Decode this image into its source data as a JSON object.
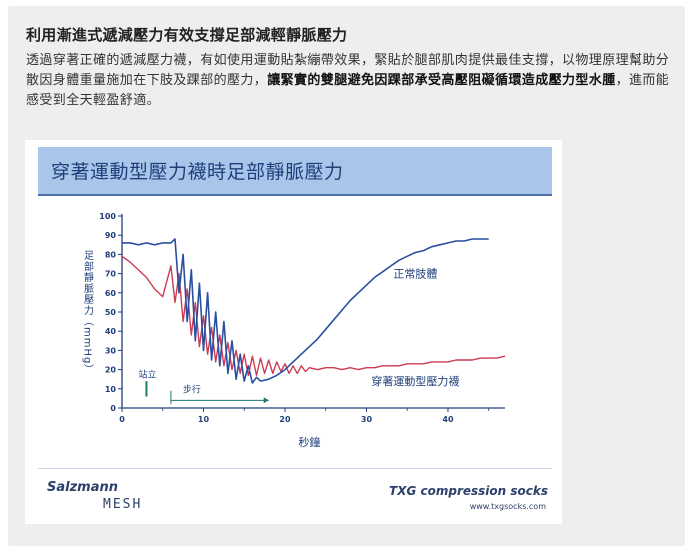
{
  "article": {
    "heading": "利用漸進式遞減壓力有效支撐足部減輕靜脈壓力",
    "para_1": "透過穿著正確的遞減壓力襪，有如使用運動貼紮繃帶效果，緊貼於腿部肌肉提供最佳支撐，以物理原理幫助分散因身體重量施加在下肢及踝部的壓力，",
    "para_bold": "讓緊實的雙腿避免因踝部承受高壓阻礙循環造成壓力型水腫",
    "para_2": "，進而能感受到全天輕盈舒適。"
  },
  "figure": {
    "title": "穿著運動型壓力襪時足部靜脈壓力",
    "logo_left_main": "Salzmann",
    "logo_left_sub": "MESH",
    "logo_right": "TXG compression socks",
    "logo_url": "www.txgsocks.com",
    "colors": {
      "normal": "#2a4fa0",
      "socks": "#cc3b52",
      "title_bar": "#a9c6ea"
    }
  },
  "chart_data": {
    "type": "line",
    "xlabel": "秒鐘",
    "ylabel": "足部靜脈壓力（mmHg）",
    "xlim": [
      0,
      47
    ],
    "ylim": [
      0,
      100
    ],
    "x_ticks": [
      "0",
      "10",
      "20",
      "30",
      "40"
    ],
    "y_ticks": [
      "0",
      "10",
      "20",
      "30",
      "40",
      "50",
      "60",
      "70",
      "80",
      "90",
      "100"
    ],
    "annotations": {
      "stand": "站立",
      "walk": "步行",
      "stand_x": 3,
      "walk_start": 6,
      "walk_end": 18
    },
    "series": [
      {
        "name": "正常肢體",
        "x": [
          0,
          1,
          2,
          3,
          4,
          5,
          6,
          6.5,
          7,
          7.5,
          8,
          8.5,
          9,
          9.5,
          10,
          10.5,
          11,
          11.5,
          12,
          12.5,
          13,
          13.5,
          14,
          14.5,
          15,
          15.5,
          16,
          16.5,
          17,
          18,
          19,
          20,
          21,
          22,
          23,
          24,
          25,
          26,
          27,
          28,
          29,
          30,
          31,
          32,
          33,
          34,
          35,
          36,
          37,
          38,
          39,
          40,
          41,
          42,
          43,
          44,
          45
        ],
        "values": [
          86,
          86,
          85,
          86,
          85,
          86,
          86,
          88,
          60,
          80,
          45,
          72,
          35,
          65,
          30,
          60,
          25,
          50,
          22,
          45,
          18,
          35,
          15,
          28,
          14,
          22,
          13,
          16,
          14,
          15,
          17,
          20,
          24,
          28,
          32,
          36,
          41,
          46,
          51,
          56,
          60,
          64,
          68,
          71,
          74,
          77,
          79,
          81,
          82,
          84,
          85,
          86,
          87,
          87,
          88,
          88,
          88
        ]
      },
      {
        "name": "穿著運動型壓力襪",
        "x": [
          0,
          1,
          2,
          3,
          4,
          5,
          6,
          6.5,
          7,
          7.5,
          8,
          8.5,
          9,
          9.5,
          10,
          10.5,
          11,
          11.5,
          12,
          12.5,
          13,
          13.5,
          14,
          14.5,
          15,
          15.5,
          16,
          16.5,
          17,
          17.5,
          18,
          18.5,
          19,
          19.5,
          20,
          20.5,
          21,
          21.5,
          22,
          22.5,
          23,
          24,
          25,
          26,
          27,
          28,
          29,
          30,
          31,
          32,
          33,
          34,
          35,
          36,
          37,
          38,
          39,
          40,
          41,
          42,
          43,
          44,
          45,
          46,
          47
        ],
        "values": [
          79,
          76,
          72,
          68,
          62,
          58,
          74,
          55,
          70,
          45,
          62,
          38,
          55,
          32,
          48,
          28,
          42,
          24,
          38,
          22,
          34,
          20,
          30,
          18,
          28,
          17,
          27,
          17,
          26,
          18,
          25,
          18,
          24,
          19,
          23,
          18,
          22,
          18,
          22,
          19,
          21,
          20,
          21,
          21,
          20,
          21,
          20,
          21,
          21,
          22,
          22,
          22,
          23,
          23,
          23,
          24,
          24,
          24,
          25,
          25,
          25,
          26,
          26,
          26,
          27
        ]
      }
    ]
  }
}
